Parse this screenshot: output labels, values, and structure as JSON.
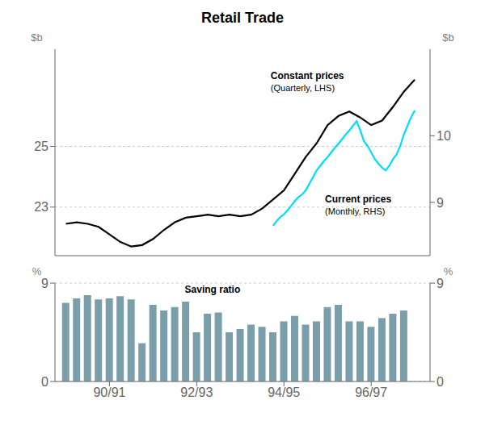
{
  "chart_data": [
    {
      "type": "line",
      "title": "Retail Trade",
      "y_label": "$b",
      "y2_label": "$b",
      "xlim": [
        1988.75,
        1997.35
      ],
      "ylim": [
        21.4,
        28.2
      ],
      "yticks": [
        23,
        25
      ],
      "y2lim": [
        8.2,
        11.3
      ],
      "y2ticks": [
        9,
        10
      ],
      "grid": true,
      "tick_labels": "y",
      "annotations": [
        "(Quarterly, LHS)",
        "(Monthly, RHS)"
      ],
      "series": [
        {
          "name": "Constant prices",
          "color": "#000000",
          "x": [
            1989.0,
            1989.25,
            1989.5,
            1989.75,
            1990.0,
            1990.25,
            1990.5,
            1990.75,
            1991.0,
            1991.25,
            1991.5,
            1991.75,
            1992.0,
            1992.25,
            1992.5,
            1992.75,
            1993.0,
            1993.25,
            1993.5,
            1993.75,
            1994.0,
            1994.25,
            1994.5,
            1994.75,
            1995.0,
            1995.25,
            1995.5,
            1995.75,
            1996.0,
            1996.25,
            1996.5,
            1996.75,
            1997.0
          ],
          "values": [
            22.45,
            22.5,
            22.45,
            22.35,
            22.1,
            21.85,
            21.7,
            21.75,
            21.95,
            22.25,
            22.5,
            22.65,
            22.7,
            22.75,
            22.7,
            22.75,
            22.7,
            22.75,
            22.95,
            23.25,
            23.55,
            24.1,
            24.65,
            25.1,
            25.7,
            26.0,
            26.15,
            25.95,
            25.7,
            25.85,
            26.3,
            26.8,
            27.2
          ]
        },
        {
          "name": "Current prices",
          "color": "#00ddff",
          "axis": "y2",
          "x": [
            1993.75,
            1993.833,
            1993.917,
            1994.0,
            1994.083,
            1994.167,
            1994.25,
            1994.333,
            1994.417,
            1994.5,
            1994.583,
            1994.667,
            1994.75,
            1994.833,
            1994.917,
            1995.0,
            1995.083,
            1995.167,
            1995.25,
            1995.333,
            1995.417,
            1995.5,
            1995.583,
            1995.667,
            1995.75,
            1995.833,
            1995.917,
            1996.0,
            1996.083,
            1996.167,
            1996.25,
            1996.333,
            1996.417,
            1996.5,
            1996.583,
            1996.667,
            1996.75,
            1996.833,
            1996.917,
            1997.0
          ],
          "values": [
            8.65,
            8.72,
            8.78,
            8.82,
            8.88,
            8.95,
            9.02,
            9.08,
            9.12,
            9.18,
            9.28,
            9.38,
            9.48,
            9.55,
            9.62,
            9.68,
            9.75,
            9.82,
            9.88,
            9.95,
            10.02,
            10.08,
            10.15,
            10.22,
            10.08,
            9.92,
            9.85,
            9.75,
            9.65,
            9.58,
            9.52,
            9.48,
            9.55,
            9.65,
            9.72,
            9.85,
            10.02,
            10.15,
            10.28,
            10.38
          ]
        }
      ]
    },
    {
      "type": "bar",
      "y_label": "%",
      "y2_label": "%",
      "color": "#7a9eaa",
      "xlim": [
        1988.75,
        1997.35
      ],
      "xticks": [
        {
          "value": 1990.0,
          "label": "90/91"
        },
        {
          "value": 1992.0,
          "label": "92/93"
        },
        {
          "value": 1994.0,
          "label": "94/95"
        },
        {
          "value": 1996.0,
          "label": "96/97"
        }
      ],
      "ylim": [
        0,
        9
      ],
      "yticks": [
        0,
        9
      ],
      "y2lim": [
        0,
        9
      ],
      "y2ticks": [
        0,
        9
      ],
      "grid": true,
      "annotations": [
        "Saving ratio"
      ],
      "x": [
        1989.0,
        1989.25,
        1989.5,
        1989.75,
        1990.0,
        1990.25,
        1990.5,
        1990.75,
        1991.0,
        1991.25,
        1991.5,
        1991.75,
        1992.0,
        1992.25,
        1992.5,
        1992.75,
        1993.0,
        1993.25,
        1993.5,
        1993.75,
        1994.0,
        1994.25,
        1994.5,
        1994.75,
        1995.0,
        1995.25,
        1995.5,
        1995.75,
        1996.0,
        1996.25,
        1996.5,
        1996.75
      ],
      "values": [
        7.2,
        7.6,
        7.9,
        7.5,
        7.6,
        7.8,
        7.5,
        3.5,
        7.0,
        6.5,
        6.8,
        7.3,
        4.5,
        6.2,
        6.3,
        4.5,
        4.8,
        5.2,
        5.0,
        4.5,
        5.5,
        6.0,
        5.2,
        5.5,
        6.8,
        7.0,
        5.5,
        5.5,
        5.0,
        5.8,
        6.2,
        6.5
      ]
    }
  ]
}
